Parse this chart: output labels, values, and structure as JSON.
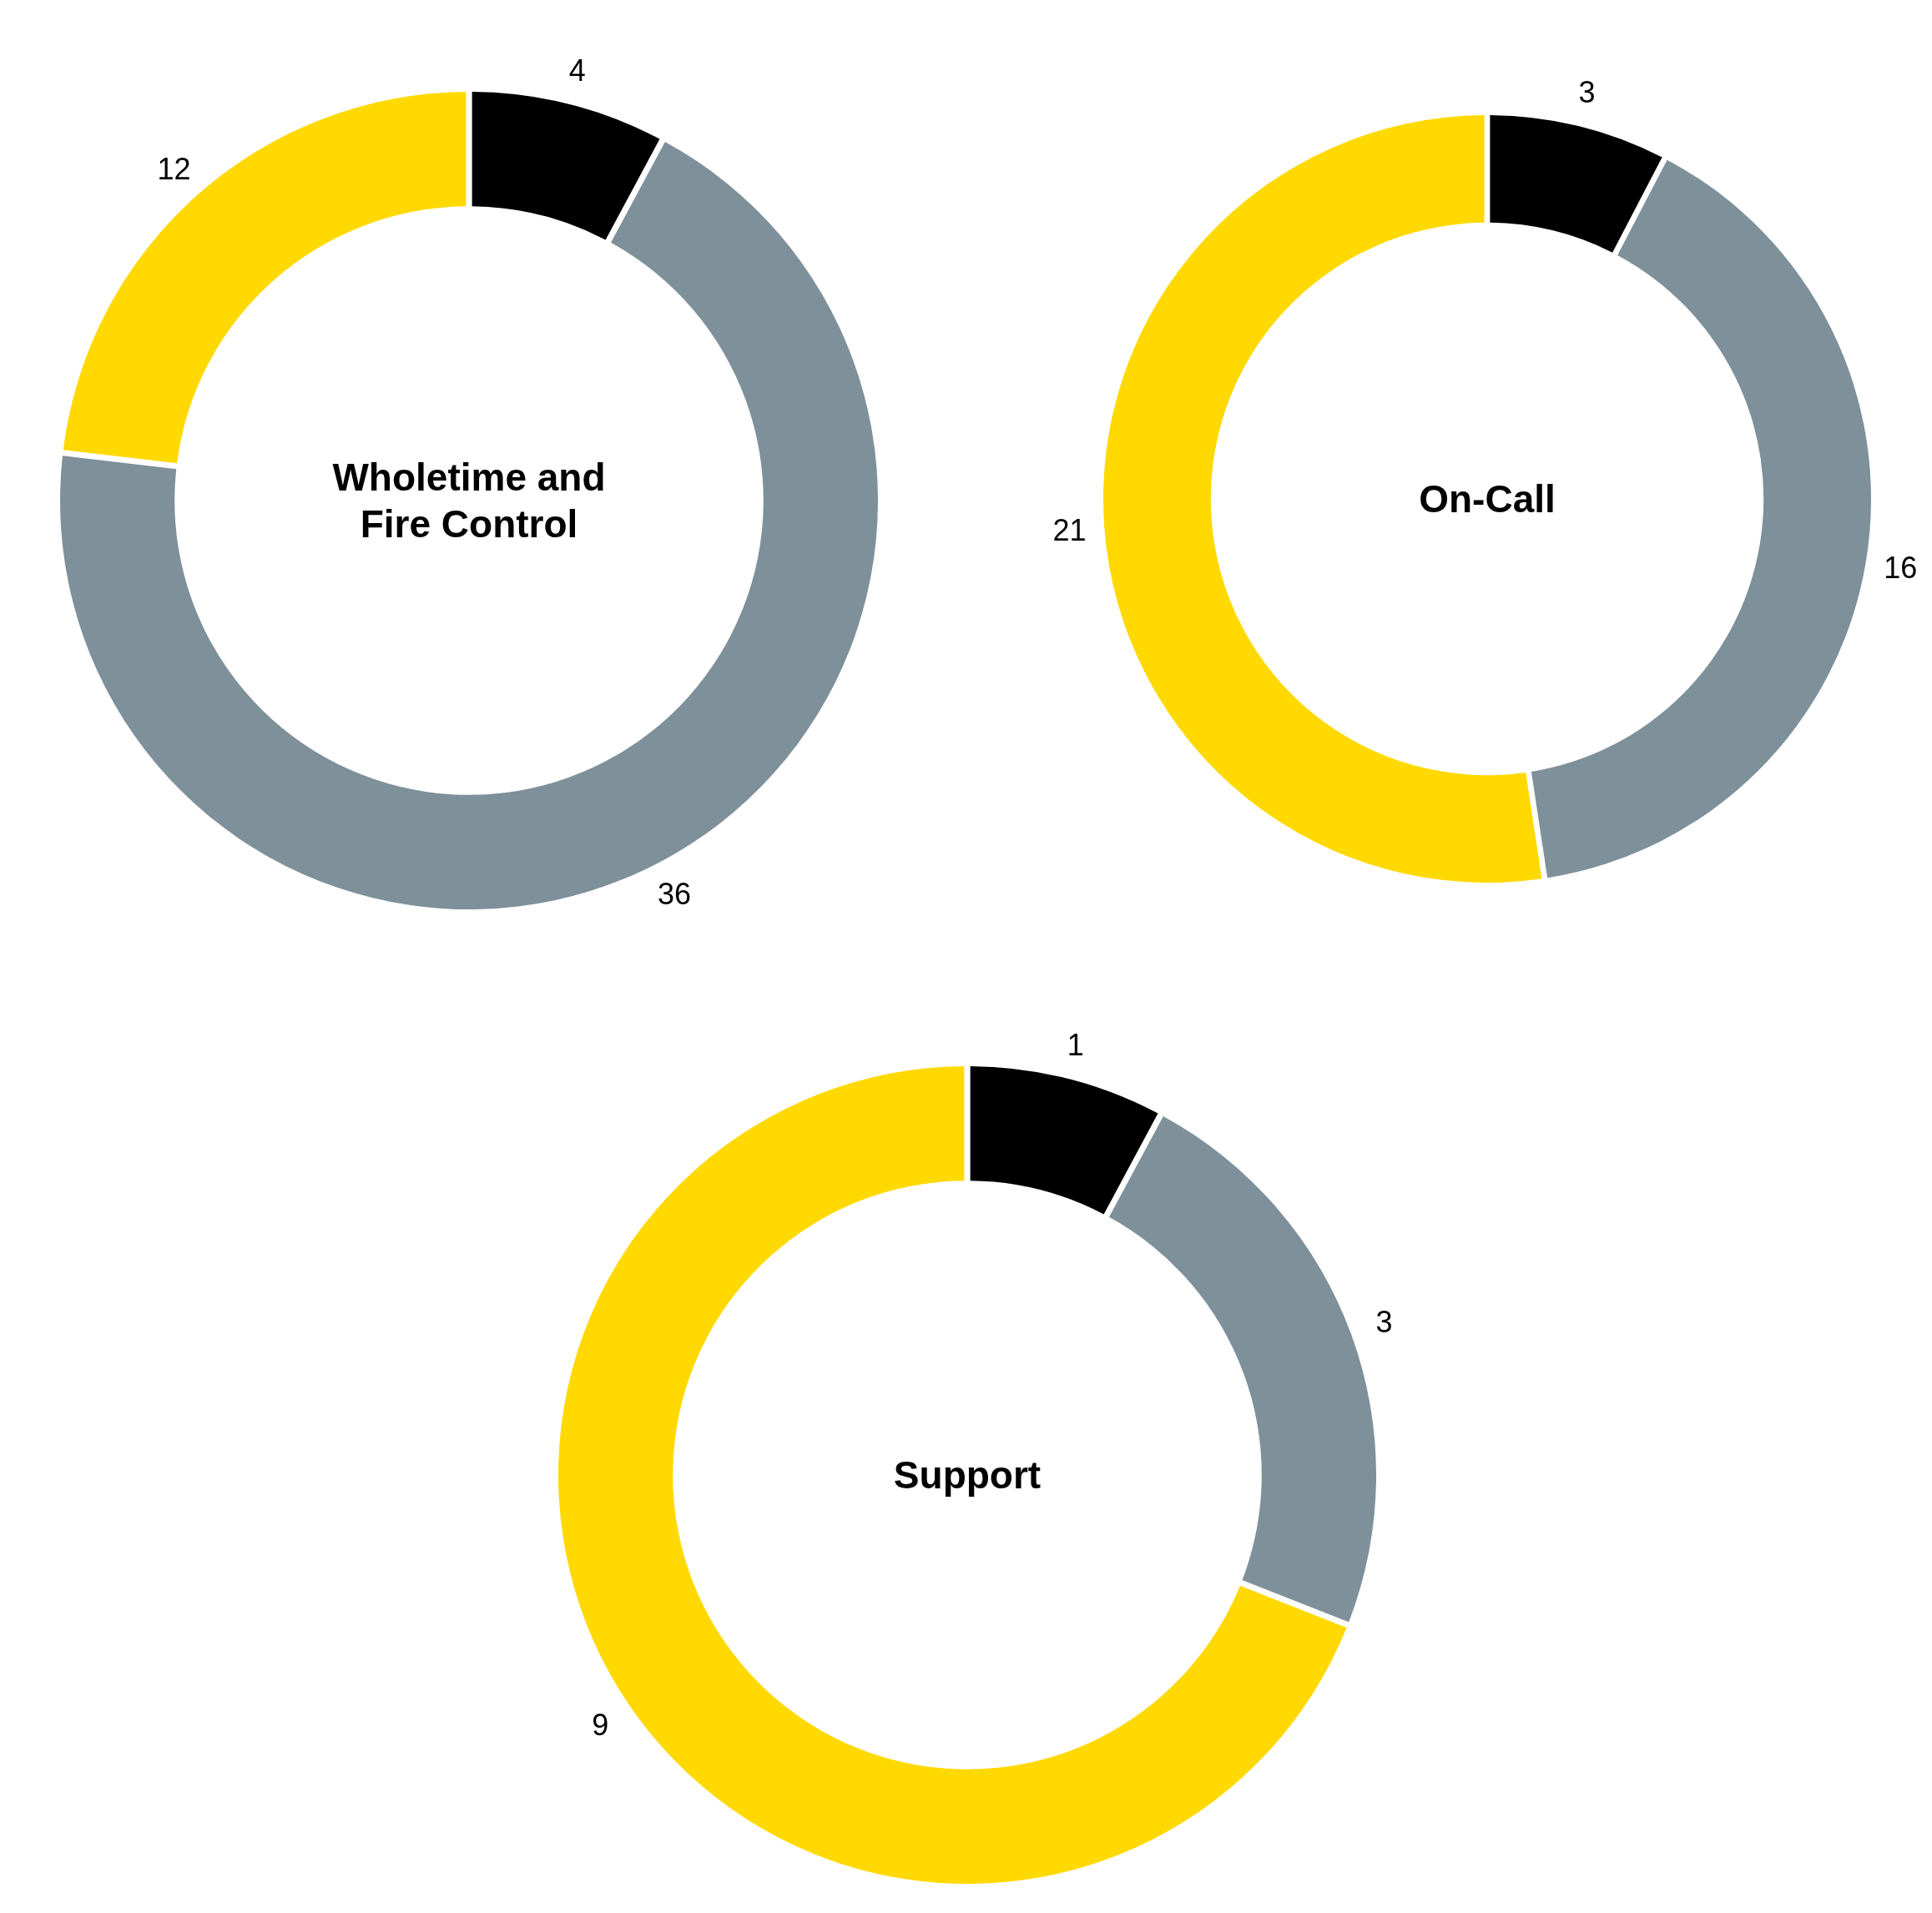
{
  "chart_data": [
    {
      "type": "donut",
      "title": "Wholetime and Fire Control",
      "categories": [
        null,
        null,
        null
      ],
      "values": [
        4,
        36,
        12
      ],
      "colors": [
        "#000000",
        "#7e909a",
        "#ffd900"
      ],
      "data_labels": true
    },
    {
      "type": "donut",
      "title": "On-Call",
      "categories": [
        null,
        null,
        null
      ],
      "values": [
        3,
        16,
        21
      ],
      "colors": [
        "#000000",
        "#7e909a",
        "#ffd900"
      ],
      "data_labels": true
    },
    {
      "type": "donut",
      "title": "Support",
      "categories": [
        null,
        null,
        null
      ],
      "values": [
        1,
        3,
        9
      ],
      "colors": [
        "#000000",
        "#7e909a",
        "#ffd900"
      ],
      "data_labels": true
    }
  ]
}
